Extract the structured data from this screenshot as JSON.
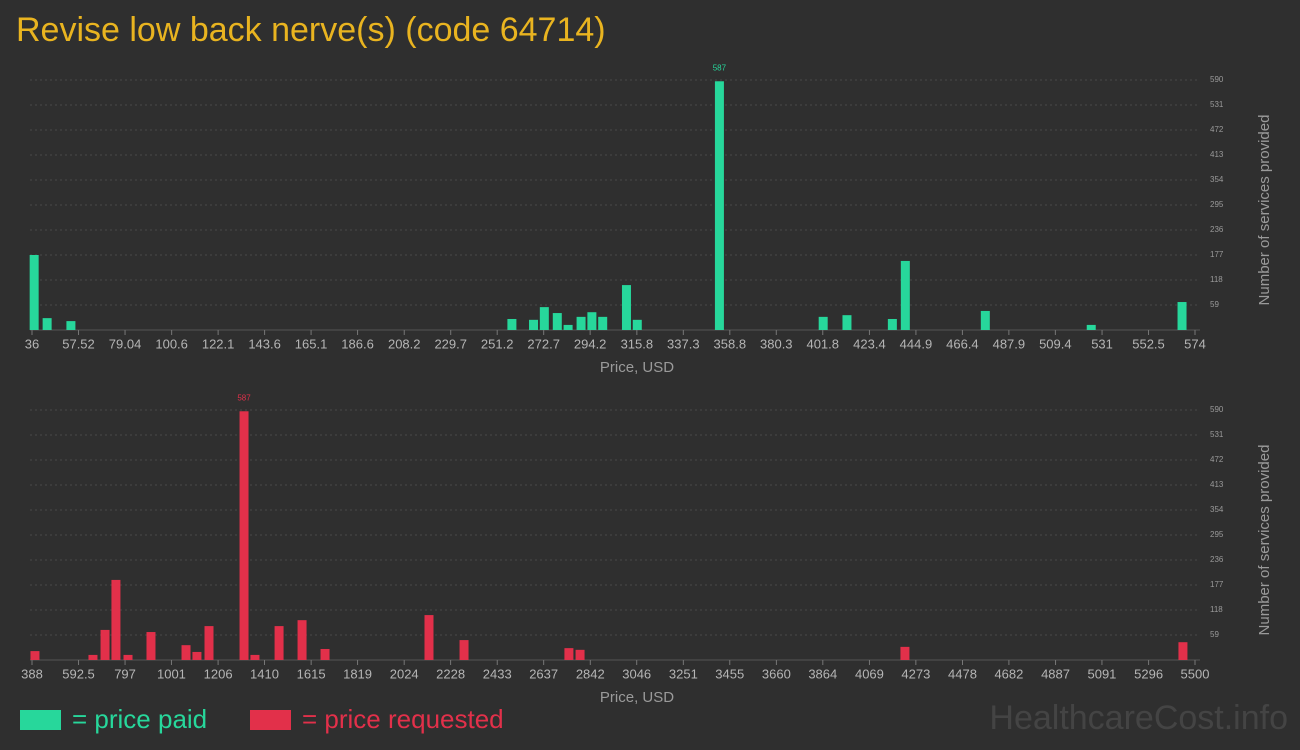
{
  "title": "Revise low back nerve(s) (code 64714)",
  "watermark": "HealthcareCost.info",
  "chart_data": [
    {
      "type": "bar",
      "x_label": "Price, USD",
      "y_label": "Number of services provided",
      "xlim": [
        36,
        574
      ],
      "ylim": [
        0,
        590
      ],
      "xticks": [
        36,
        57.52,
        79.04,
        100.6,
        122.1,
        143.6,
        165.1,
        186.6,
        208.2,
        229.7,
        251.2,
        272.7,
        294.2,
        315.8,
        337.3,
        358.8,
        380.3,
        401.8,
        423.4,
        444.9,
        466.4,
        487.9,
        509.4,
        531,
        552.5,
        574
      ],
      "yticks": [
        59,
        118,
        177,
        236,
        295,
        354,
        413,
        472,
        531,
        590
      ],
      "grid": true,
      "x": [
        37,
        43,
        54,
        258,
        268,
        273,
        279,
        284,
        290,
        295,
        300,
        311,
        316,
        354,
        402,
        413,
        434,
        440,
        477,
        526,
        568
      ],
      "series": [
        {
          "name": "= price paid",
          "color": "#27d79b",
          "values": [
            177,
            28,
            21,
            26,
            24,
            54,
            40,
            12,
            31,
            42,
            31,
            106,
            24,
            587,
            31,
            35,
            26,
            163,
            45,
            12,
            66
          ]
        }
      ]
    },
    {
      "type": "bar",
      "x_label": "Price, USD",
      "y_label": "Number of services provided",
      "xlim": [
        388,
        5500
      ],
      "ylim": [
        0,
        590
      ],
      "xticks": [
        388,
        592.5,
        797,
        1001,
        1206,
        1410,
        1615,
        1819,
        2024,
        2228,
        2433,
        2637,
        2842,
        3046,
        3251,
        3455,
        3660,
        3864,
        4069,
        4273,
        4478,
        4682,
        4887,
        5091,
        5296,
        5500
      ],
      "yticks": [
        59,
        118,
        177,
        236,
        295,
        354,
        413,
        472,
        531,
        590
      ],
      "grid": true,
      "x": [
        401,
        656,
        709,
        757,
        810,
        911,
        1065,
        1113,
        1166,
        1320,
        1368,
        1474,
        1575,
        1676,
        2133,
        2287,
        2748,
        2797,
        4225,
        5447
      ],
      "series": [
        {
          "name": "= price requested",
          "color": "#e2304a",
          "values": [
            21,
            12,
            71,
            189,
            12,
            66,
            35,
            19,
            80,
            587,
            12,
            80,
            94,
            26,
            106,
            47,
            28,
            24,
            31,
            42
          ]
        }
      ]
    }
  ]
}
